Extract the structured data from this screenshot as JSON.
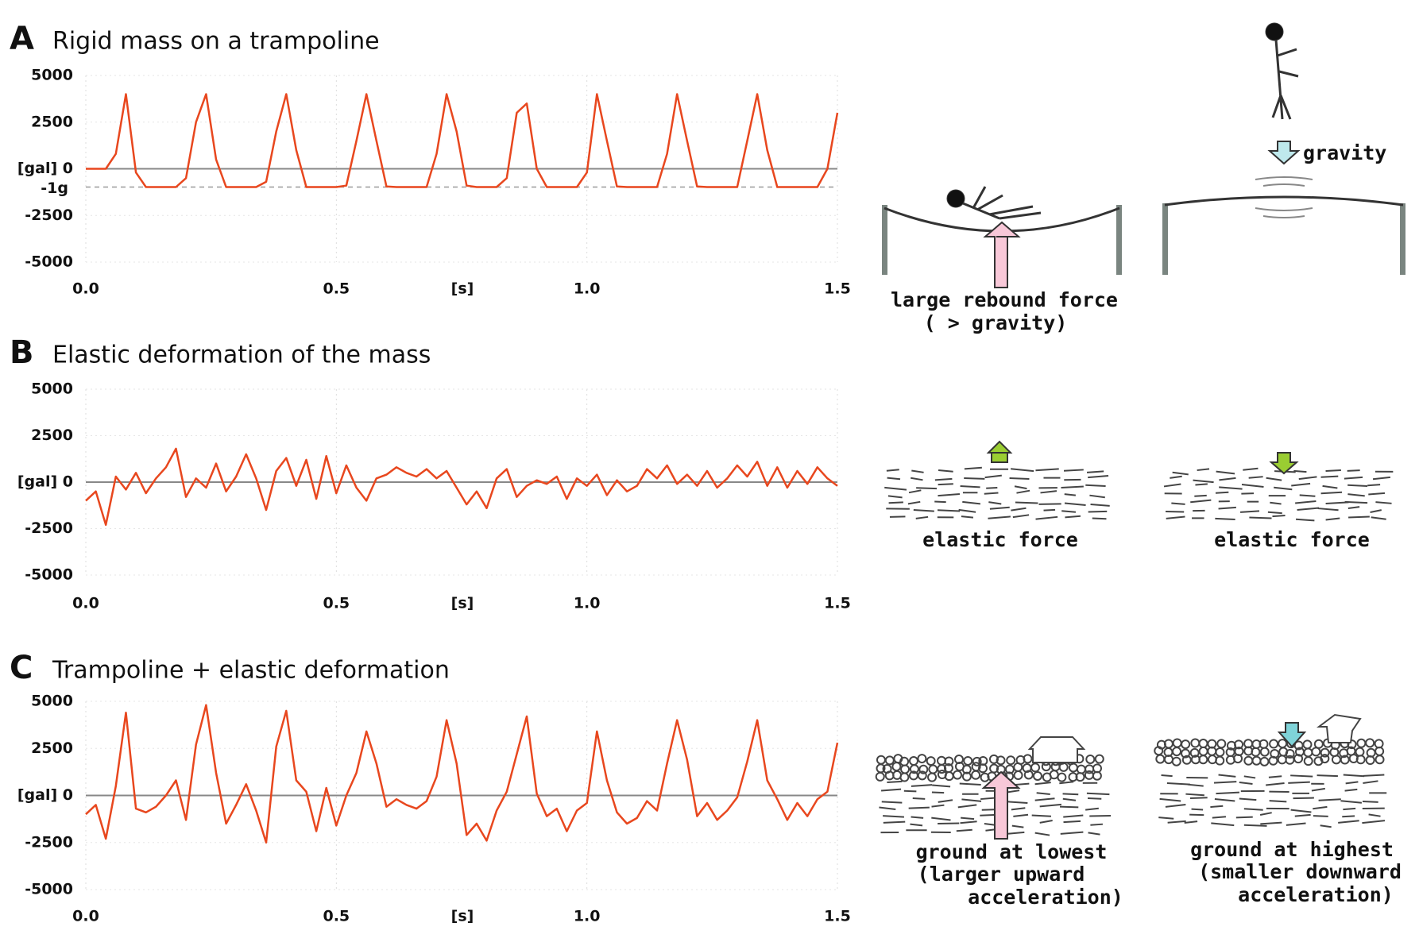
{
  "chart_data": [
    {
      "type": "line",
      "panel": "A",
      "title": "Rigid mass on a trampoline",
      "color": "#e8471e",
      "x": [
        0,
        0.02,
        0.04,
        0.06,
        0.08,
        0.1,
        0.12,
        0.14,
        0.16,
        0.18,
        0.2,
        0.22,
        0.24,
        0.26,
        0.28,
        0.3,
        0.32,
        0.34,
        0.36,
        0.38,
        0.4,
        0.42,
        0.44,
        0.46,
        0.48,
        0.5,
        0.52,
        0.54,
        0.56,
        0.58,
        0.6,
        0.62,
        0.64,
        0.66,
        0.68,
        0.7,
        0.72,
        0.74,
        0.76,
        0.78,
        0.8,
        0.82,
        0.84,
        0.86,
        0.88,
        0.9,
        0.92,
        0.94,
        0.96,
        0.98,
        1,
        1.02,
        1.04,
        1.06,
        1.08,
        1.1,
        1.12,
        1.14,
        1.16,
        1.18,
        1.2,
        1.22,
        1.24,
        1.26,
        1.28,
        1.3,
        1.32,
        1.34,
        1.36,
        1.38,
        1.4,
        1.42,
        1.44,
        1.46,
        1.48,
        1.5
      ],
      "values": [
        0,
        0,
        0,
        800,
        4000,
        -200,
        -980,
        -980,
        -980,
        -980,
        -500,
        2500,
        4000,
        500,
        -980,
        -980,
        -980,
        -980,
        -700,
        2000,
        4000,
        1000,
        -980,
        -980,
        -980,
        -980,
        -900,
        1500,
        4000,
        1500,
        -950,
        -980,
        -980,
        -980,
        -980,
        800,
        4000,
        2000,
        -900,
        -980,
        -980,
        -980,
        -500,
        3000,
        3500,
        0,
        -980,
        -980,
        -980,
        -980,
        -200,
        4000,
        1500,
        -950,
        -980,
        -980,
        -980,
        -980,
        800,
        4000,
        1500,
        -950,
        -980,
        -980,
        -980,
        -980,
        1500,
        4000,
        1000,
        -980,
        -980,
        -980,
        -980,
        -980,
        0,
        3000
      ],
      "xlim": [
        0,
        1.5
      ],
      "xticks": [
        {
          "value": 0,
          "label": "0.0"
        },
        0.5,
        {
          "value": 1,
          "label": "1.0"
        },
        1.5
      ],
      "xlabel": "[s]",
      "ylim": [
        -5000,
        5000
      ],
      "yticks": [
        5000,
        2500,
        {
          "value": 0,
          "label": "[gal] 0"
        },
        -2500,
        -5000
      ],
      "reference_line": {
        "value": -980,
        "label": "-1g"
      },
      "annotations": [
        "gravity",
        "large rebound force",
        "( > gravity)"
      ]
    },
    {
      "type": "line",
      "panel": "B",
      "title": "Elastic deformation of the mass",
      "color": "#e8471e",
      "x": [
        0,
        0.02,
        0.04,
        0.06,
        0.08,
        0.1,
        0.12,
        0.14,
        0.16,
        0.18,
        0.2,
        0.22,
        0.24,
        0.26,
        0.28,
        0.3,
        0.32,
        0.34,
        0.36,
        0.38,
        0.4,
        0.42,
        0.44,
        0.46,
        0.48,
        0.5,
        0.52,
        0.54,
        0.56,
        0.58,
        0.6,
        0.62,
        0.64,
        0.66,
        0.68,
        0.7,
        0.72,
        0.74,
        0.76,
        0.78,
        0.8,
        0.82,
        0.84,
        0.86,
        0.88,
        0.9,
        0.92,
        0.94,
        0.96,
        0.98,
        1,
        1.02,
        1.04,
        1.06,
        1.08,
        1.1,
        1.12,
        1.14,
        1.16,
        1.18,
        1.2,
        1.22,
        1.24,
        1.26,
        1.28,
        1.3,
        1.32,
        1.34,
        1.36,
        1.38,
        1.4,
        1.42,
        1.44,
        1.46,
        1.48,
        1.5
      ],
      "values": [
        -1000,
        -500,
        -2300,
        300,
        -400,
        500,
        -600,
        200,
        800,
        1800,
        -800,
        200,
        -300,
        1000,
        -500,
        300,
        1500,
        200,
        -1500,
        600,
        1300,
        -200,
        1200,
        -900,
        1400,
        -600,
        900,
        -300,
        -1000,
        200,
        400,
        800,
        500,
        300,
        700,
        200,
        600,
        -300,
        -1200,
        -500,
        -1400,
        200,
        700,
        -800,
        -200,
        100,
        -100,
        300,
        -900,
        200,
        -200,
        400,
        -700,
        100,
        -500,
        -200,
        700,
        200,
        900,
        -100,
        400,
        -200,
        600,
        -300,
        200,
        900,
        300,
        1100,
        -200,
        800,
        -300,
        600,
        -100,
        800,
        200,
        -200
      ],
      "xlim": [
        0,
        1.5
      ],
      "xticks": [
        {
          "value": 0,
          "label": "0.0"
        },
        0.5,
        {
          "value": 1,
          "label": "1.0"
        },
        1.5
      ],
      "xlabel": "[s]",
      "ylim": [
        -5000,
        5000
      ],
      "yticks": [
        5000,
        2500,
        {
          "value": 0,
          "label": "[gal] 0"
        },
        -2500,
        -5000
      ],
      "annotations": [
        "elastic force",
        "elastic force"
      ]
    },
    {
      "type": "line",
      "panel": "C",
      "title": "Trampoline + elastic deformation",
      "color": "#e8471e",
      "x": [
        0,
        0.02,
        0.04,
        0.06,
        0.08,
        0.1,
        0.12,
        0.14,
        0.16,
        0.18,
        0.2,
        0.22,
        0.24,
        0.26,
        0.28,
        0.3,
        0.32,
        0.34,
        0.36,
        0.38,
        0.4,
        0.42,
        0.44,
        0.46,
        0.48,
        0.5,
        0.52,
        0.54,
        0.56,
        0.58,
        0.6,
        0.62,
        0.64,
        0.66,
        0.68,
        0.7,
        0.72,
        0.74,
        0.76,
        0.78,
        0.8,
        0.82,
        0.84,
        0.86,
        0.88,
        0.9,
        0.92,
        0.94,
        0.96,
        0.98,
        1,
        1.02,
        1.04,
        1.06,
        1.08,
        1.1,
        1.12,
        1.14,
        1.16,
        1.18,
        1.2,
        1.22,
        1.24,
        1.26,
        1.28,
        1.3,
        1.32,
        1.34,
        1.36,
        1.38,
        1.4,
        1.42,
        1.44,
        1.46,
        1.48,
        1.5
      ],
      "values": [
        -1000,
        -500,
        -2300,
        500,
        4400,
        -700,
        -900,
        -600,
        0,
        800,
        -1300,
        2700,
        4800,
        1200,
        -1500,
        -500,
        600,
        -800,
        -2500,
        2600,
        4500,
        800,
        200,
        -1900,
        400,
        -1600,
        0,
        1200,
        3400,
        1700,
        -600,
        -200,
        -500,
        -700,
        -300,
        1000,
        4000,
        1700,
        -2100,
        -1500,
        -2400,
        -800,
        200,
        2200,
        4200,
        100,
        -1100,
        -700,
        -1900,
        -800,
        -400,
        3400,
        800,
        -900,
        -1500,
        -1200,
        -300,
        -800,
        1700,
        4000,
        1900,
        -1100,
        -400,
        -1300,
        -800,
        -100,
        1800,
        4000,
        800,
        -200,
        -1300,
        -400,
        -1100,
        -200,
        200,
        2800
      ],
      "xlim": [
        0,
        1.5
      ],
      "xticks": [
        {
          "value": 0,
          "label": "0.0"
        },
        0.5,
        {
          "value": 1,
          "label": "1.0"
        },
        1.5
      ],
      "xlabel": "[s]",
      "ylim": [
        -5000,
        5000
      ],
      "yticks": [
        5000,
        2500,
        {
          "value": 0,
          "label": "[gal] 0"
        },
        -2500,
        -5000
      ],
      "annotations": [
        "ground at lowest",
        "(larger upward",
        "acceleration)",
        "ground at highest",
        "(smaller downward",
        "acceleration)"
      ]
    }
  ]
}
